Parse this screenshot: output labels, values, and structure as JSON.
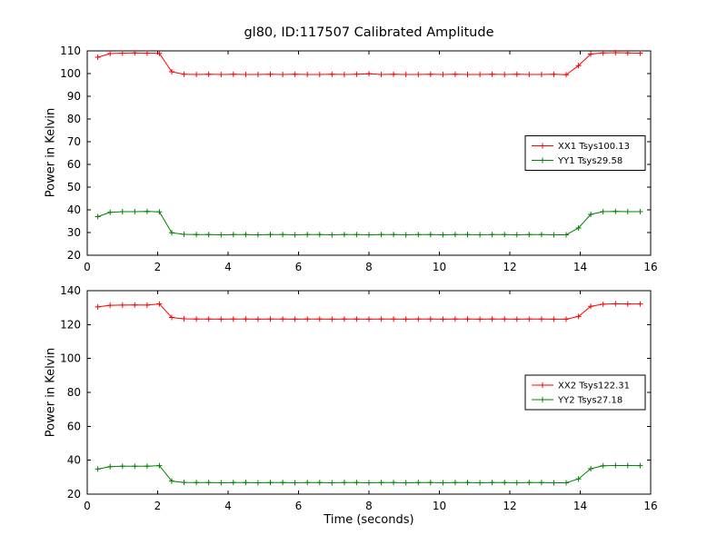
{
  "title": "gl80, ID:117507 Calibrated Amplitude",
  "xlabel": "Time (seconds)",
  "colors": {
    "red": "#ff0000",
    "green": "#008000",
    "frame": "#000000",
    "background": "#ffffff"
  },
  "chart_data": [
    {
      "type": "line",
      "ylabel": "Power in Kelvin",
      "xlim": [
        0,
        16
      ],
      "ylim": [
        20,
        110
      ],
      "xticks": [
        0,
        2,
        4,
        6,
        8,
        10,
        12,
        14,
        16
      ],
      "yticks": [
        20,
        30,
        40,
        50,
        60,
        70,
        80,
        90,
        100,
        110
      ],
      "grid": false,
      "legend_position": "center right",
      "marker": "+",
      "x": [
        0.3,
        0.65,
        1.0,
        1.35,
        1.7,
        2.05,
        2.4,
        2.75,
        3.1,
        3.45,
        3.8,
        4.15,
        4.5,
        4.85,
        5.2,
        5.55,
        5.9,
        6.25,
        6.6,
        6.95,
        7.3,
        7.65,
        8.0,
        8.35,
        8.7,
        9.05,
        9.4,
        9.75,
        10.1,
        10.45,
        10.8,
        11.15,
        11.5,
        11.85,
        12.2,
        12.55,
        12.9,
        13.25,
        13.6,
        13.95,
        14.3,
        14.65,
        15.0,
        15.35,
        15.7
      ],
      "series": [
        {
          "name": "XX1 Tsys100.13",
          "color": "#ff0000",
          "values": [
            107.2,
            108.8,
            109.0,
            109.1,
            109.0,
            108.9,
            100.8,
            99.7,
            99.6,
            99.7,
            99.6,
            99.7,
            99.6,
            99.6,
            99.7,
            99.6,
            99.7,
            99.6,
            99.6,
            99.7,
            99.6,
            99.7,
            99.9,
            99.6,
            99.7,
            99.6,
            99.6,
            99.7,
            99.6,
            99.7,
            99.6,
            99.6,
            99.7,
            99.6,
            99.7,
            99.6,
            99.6,
            99.7,
            99.5,
            103.5,
            108.6,
            109.1,
            109.2,
            109.1,
            109.0
          ]
        },
        {
          "name": "YY1 Tsys29.58",
          "color": "#008000",
          "values": [
            37.0,
            38.9,
            39.2,
            39.2,
            39.3,
            39.1,
            29.9,
            29.2,
            29.1,
            29.1,
            29.0,
            29.1,
            29.1,
            29.0,
            29.1,
            29.1,
            29.0,
            29.1,
            29.1,
            29.0,
            29.1,
            29.1,
            29.0,
            29.1,
            29.1,
            29.0,
            29.1,
            29.1,
            29.0,
            29.1,
            29.1,
            29.0,
            29.1,
            29.1,
            29.0,
            29.1,
            29.1,
            29.0,
            29.0,
            32.0,
            38.0,
            39.2,
            39.3,
            39.2,
            39.2
          ]
        }
      ]
    },
    {
      "type": "line",
      "ylabel": "Power in Kelvin",
      "xlim": [
        0,
        16
      ],
      "ylim": [
        20,
        140
      ],
      "xticks": [
        0,
        2,
        4,
        6,
        8,
        10,
        12,
        14,
        16
      ],
      "yticks": [
        20,
        40,
        60,
        80,
        100,
        120,
        140
      ],
      "grid": false,
      "legend_position": "center right",
      "marker": "+",
      "x": [
        0.3,
        0.65,
        1.0,
        1.35,
        1.7,
        2.05,
        2.4,
        2.75,
        3.1,
        3.45,
        3.8,
        4.15,
        4.5,
        4.85,
        5.2,
        5.55,
        5.9,
        6.25,
        6.6,
        6.95,
        7.3,
        7.65,
        8.0,
        8.35,
        8.7,
        9.05,
        9.4,
        9.75,
        10.1,
        10.45,
        10.8,
        11.15,
        11.5,
        11.85,
        12.2,
        12.55,
        12.9,
        13.25,
        13.6,
        13.95,
        14.3,
        14.65,
        15.0,
        15.35,
        15.7
      ],
      "series": [
        {
          "name": "XX2 Tsys122.31",
          "color": "#ff0000",
          "values": [
            130.4,
            131.4,
            131.5,
            131.6,
            131.5,
            132.2,
            124.2,
            123.4,
            123.3,
            123.3,
            123.2,
            123.3,
            123.3,
            123.2,
            123.3,
            123.3,
            123.2,
            123.3,
            123.3,
            123.2,
            123.3,
            123.3,
            123.2,
            123.3,
            123.3,
            123.2,
            123.3,
            123.3,
            123.2,
            123.3,
            123.3,
            123.2,
            123.3,
            123.3,
            123.2,
            123.3,
            123.3,
            123.2,
            123.2,
            124.8,
            130.8,
            132.0,
            132.3,
            132.2,
            132.2
          ]
        },
        {
          "name": "YY2 Tsys27.18",
          "color": "#008000",
          "values": [
            34.8,
            36.2,
            36.5,
            36.5,
            36.5,
            36.8,
            27.7,
            26.9,
            26.8,
            26.8,
            26.7,
            26.8,
            26.8,
            26.7,
            26.8,
            26.8,
            26.7,
            26.8,
            26.8,
            26.7,
            26.8,
            26.8,
            26.7,
            26.8,
            26.8,
            26.7,
            26.8,
            26.8,
            26.7,
            26.8,
            26.8,
            26.7,
            26.8,
            26.8,
            26.7,
            26.8,
            26.8,
            26.7,
            26.7,
            29.0,
            35.0,
            36.7,
            36.9,
            36.9,
            36.8
          ]
        }
      ]
    }
  ]
}
